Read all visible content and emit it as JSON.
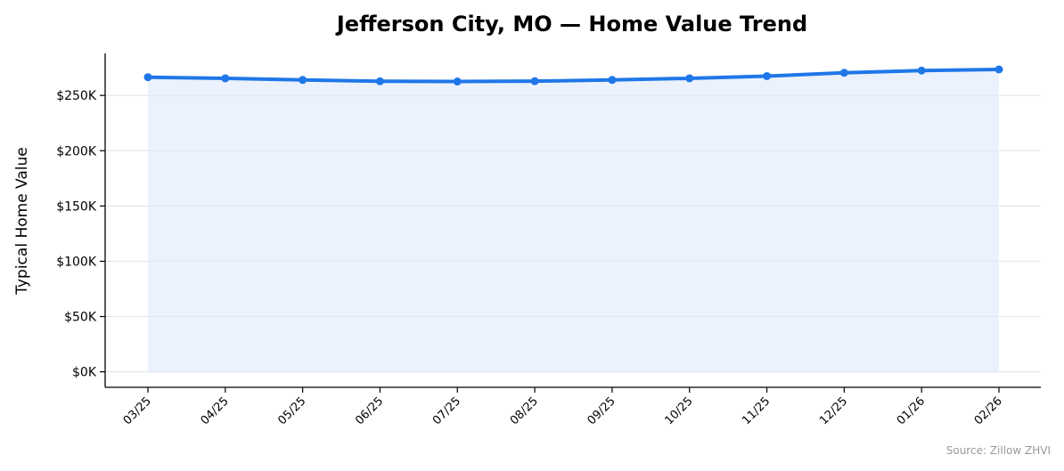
{
  "chart_data": {
    "type": "area",
    "title": "Jefferson City, MO — Home Value Trend",
    "xlabel": "",
    "ylabel": "Typical Home Value",
    "categories": [
      "03/25",
      "04/25",
      "05/25",
      "06/25",
      "07/25",
      "08/25",
      "09/25",
      "10/25",
      "11/25",
      "12/25",
      "01/26",
      "02/26"
    ],
    "values": [
      266500,
      265500,
      264000,
      262800,
      262600,
      262900,
      264000,
      265500,
      267500,
      270500,
      272500,
      273500
    ],
    "ylim": [
      -14000,
      288000
    ],
    "yticks": [
      0,
      50000,
      100000,
      150000,
      200000,
      250000
    ],
    "ytick_labels": [
      "$0K",
      "$50K",
      "$100K",
      "$150K",
      "$200K",
      "$250K"
    ],
    "grid": "horizontal",
    "source": "Source: Zillow ZHVI",
    "colors": {
      "line": "#1f77e8",
      "fill": "#ddeafc",
      "grid": "#e3e6ec",
      "source_text": "#999999"
    }
  }
}
